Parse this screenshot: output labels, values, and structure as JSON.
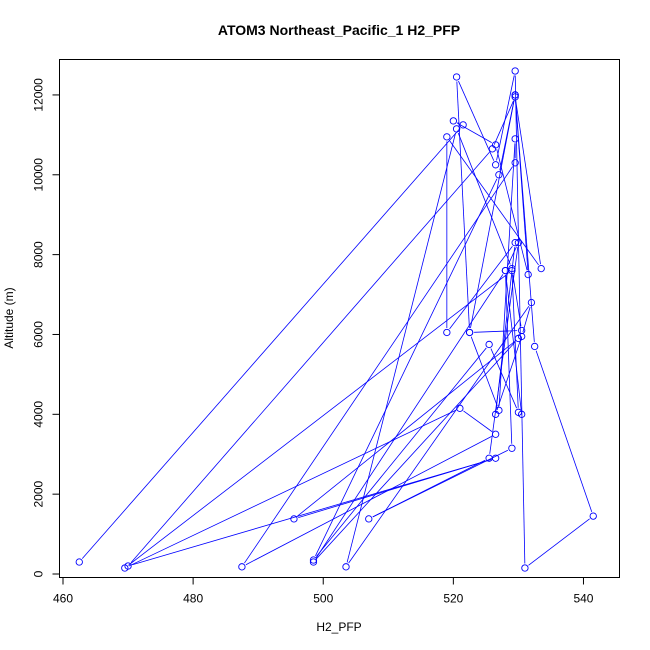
{
  "chart_data": {
    "type": "line",
    "title": "ATOM3 Northeast_Pacific_1 H2_PFP",
    "xlabel": "H2_PFP",
    "ylabel": "Altitude (m)",
    "xlim": [
      460,
      545
    ],
    "ylim": [
      0,
      12800
    ],
    "x_ticks": [
      460,
      480,
      500,
      520,
      540
    ],
    "y_ticks": [
      0,
      2000,
      4000,
      6000,
      8000,
      10000,
      12000
    ],
    "x_tick_labels": [
      "460",
      "480",
      "500",
      "520",
      "540"
    ],
    "y_tick_labels": [
      "0",
      "2000",
      "4000",
      "6000",
      "8000",
      "10000",
      "12000"
    ],
    "grid": false,
    "line_color": "#0000ff",
    "marker": "open-circle",
    "series": [
      {
        "x": [
          462.5,
          521.5,
          520.0,
          526.5,
          531.5,
          529.5,
          532.5,
          541.5,
          531.0,
          529.5,
          526.5,
          520.5,
          522.5,
          527.0,
          529.5,
          529.5,
          487.5,
          526.5,
          521.0,
          469.5,
          529.0,
          530.0,
          525.5,
          498.5,
          527.0,
          529.5,
          522.5,
          530.5,
          529.0,
          520.5,
          503.5,
          532.0,
          530.5,
          526.5,
          529.5,
          519.0,
          519.0,
          533.5,
          529.5,
          526.0,
          470.0,
          526.5,
          495.5,
          530.0,
          498.5,
          528.0,
          530.0,
          525.5,
          507.0,
          529.0,
          528.0,
          530.5
        ],
        "y": [
          300,
          11250,
          11350,
          10750,
          7500,
          12000,
          5700,
          1450,
          150,
          12600,
          10250,
          12450,
          6050,
          4100,
          10900,
          10300,
          180,
          3500,
          4150,
          150,
          7600,
          4050,
          5750,
          350,
          10000,
          12000,
          6050,
          6100,
          7650,
          11150,
          180,
          6800,
          5950,
          4000,
          8300,
          6050,
          10950,
          7650,
          11950,
          10650,
          200,
          2900,
          1380,
          5900,
          300,
          7600,
          8300,
          2900,
          1380,
          3150,
          7600,
          4000
        ]
      }
    ]
  }
}
